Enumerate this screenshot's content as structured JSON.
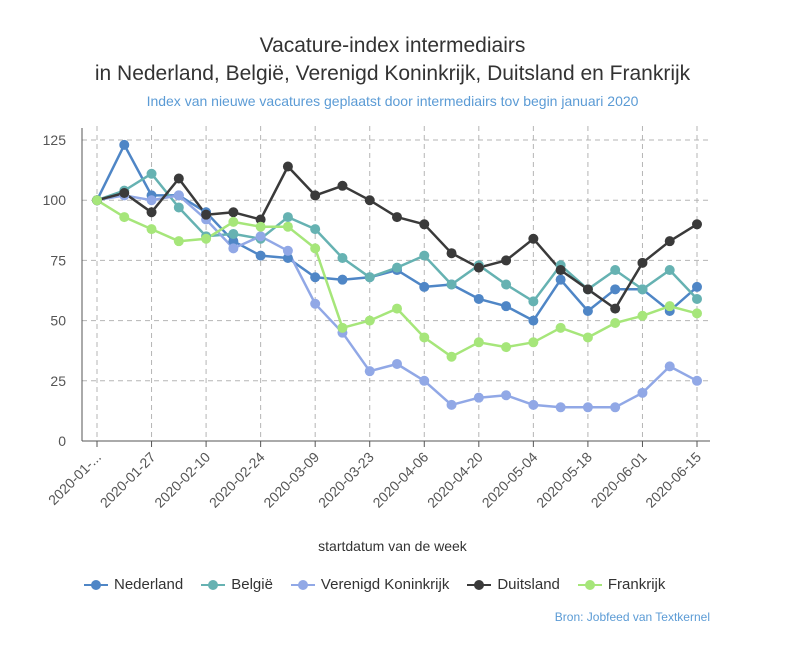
{
  "chart_data": {
    "type": "line",
    "title_line1": "Vacature-index intermediairs",
    "title_line2": "in Nederland, België, Verenigd Koninkrijk, Duitsland en Frankrijk",
    "subtitle": "Index van nieuwe vacatures geplaatst door intermediairs tov begin januari 2020",
    "xlabel": "startdatum van de week",
    "ylabel": "",
    "source": "Bron: Jobfeed van Textkernel",
    "ylim": [
      0,
      130
    ],
    "yticks": [
      0,
      25,
      50,
      75,
      100,
      125
    ],
    "grid": true,
    "legend_position": "bottom",
    "x_tick_labels": [
      "2020-01-...",
      "2020-01-27",
      "2020-02-10",
      "2020-02-24",
      "2020-03-09",
      "2020-03-23",
      "2020-04-06",
      "2020-04-20",
      "2020-05-04",
      "2020-05-18",
      "2020-06-01",
      "2020-06-15"
    ],
    "x": [
      "2020-01-13",
      "2020-01-20",
      "2020-01-27",
      "2020-02-03",
      "2020-02-10",
      "2020-02-17",
      "2020-02-24",
      "2020-03-02",
      "2020-03-09",
      "2020-03-16",
      "2020-03-23",
      "2020-03-30",
      "2020-04-06",
      "2020-04-13",
      "2020-04-20",
      "2020-04-27",
      "2020-05-04",
      "2020-05-11",
      "2020-05-18",
      "2020-05-25",
      "2020-06-01",
      "2020-06-08",
      "2020-06-15"
    ],
    "series": [
      {
        "name": "Nederland",
        "color": "#4f86c6",
        "values": [
          100,
          123,
          102,
          102,
          95,
          83,
          77,
          76,
          68,
          67,
          68,
          71,
          64,
          65,
          59,
          56,
          50,
          67,
          54,
          63,
          63,
          54,
          64
        ]
      },
      {
        "name": "België",
        "color": "#66b2b2",
        "values": [
          100,
          104,
          111,
          97,
          85,
          86,
          84,
          93,
          88,
          76,
          68,
          72,
          77,
          65,
          73,
          65,
          58,
          73,
          63,
          71,
          63,
          71,
          59
        ]
      },
      {
        "name": "Verenigd Koninkrijk",
        "color": "#91a8e6",
        "values": [
          100,
          102,
          100,
          102,
          92,
          80,
          85,
          79,
          57,
          45,
          29,
          32,
          25,
          15,
          18,
          19,
          15,
          14,
          14,
          14,
          20,
          31,
          25
        ]
      },
      {
        "name": "Duitsland",
        "color": "#3a3a3a",
        "values": [
          100,
          103,
          95,
          109,
          94,
          95,
          92,
          114,
          102,
          106,
          100,
          93,
          90,
          78,
          72,
          75,
          84,
          71,
          63,
          55,
          74,
          83,
          90
        ]
      },
      {
        "name": "Frankrijk",
        "color": "#a6e67a",
        "values": [
          100,
          93,
          88,
          83,
          84,
          91,
          89,
          89,
          80,
          47,
          50,
          55,
          43,
          35,
          41,
          39,
          41,
          47,
          43,
          49,
          52,
          56,
          53
        ]
      }
    ]
  }
}
